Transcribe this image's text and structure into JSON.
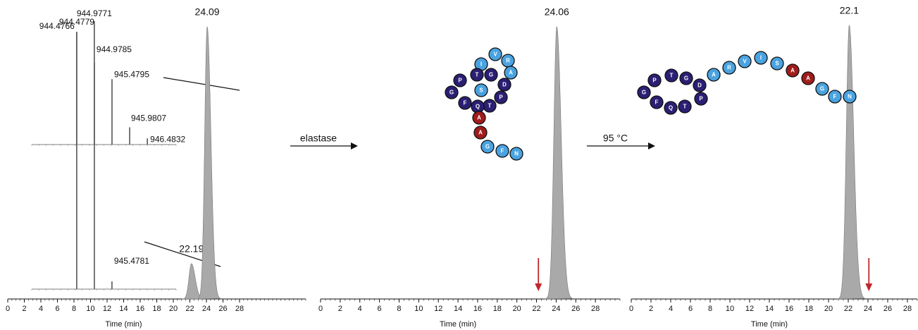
{
  "chart_data": [
    {
      "type": "chromatogram",
      "x": [
        22.19,
        24.09
      ],
      "values": [
        13,
        100
      ],
      "color": "#a9a9a9",
      "xlim": [
        0,
        36
      ],
      "xticks": [
        0,
        2,
        4,
        6,
        8,
        10,
        12,
        14,
        16,
        18,
        20,
        22,
        24,
        26,
        28
      ],
      "ylim": [
        0,
        100
      ],
      "xlabel": "Time (min)"
    },
    {
      "type": "chromatogram",
      "x": [
        24.06
      ],
      "values": [
        100
      ],
      "color": "#a9a9a9",
      "xlim": [
        0,
        30.5
      ],
      "xticks": [
        0,
        2,
        4,
        6,
        8,
        10,
        12,
        14,
        16,
        18,
        20,
        22,
        24,
        26,
        28
      ],
      "ylim": [
        0,
        100
      ],
      "xlabel": "Time (min)",
      "marker_x": 22.19,
      "marker_color": "#c0282d"
    },
    {
      "type": "chromatogram",
      "x": [
        22.1
      ],
      "values": [
        100
      ],
      "color": "#a9a9a9",
      "xlim": [
        0,
        29
      ],
      "xticks": [
        0,
        2,
        4,
        6,
        8,
        10,
        12,
        14,
        16,
        18,
        20,
        22,
        24,
        26,
        28
      ],
      "ylim": [
        0,
        100
      ],
      "xlabel": "Time (min)",
      "marker_x": 24.09,
      "marker_color": "#c0282d"
    },
    {
      "type": "spectrum",
      "x": [
        944.4766,
        944.9771,
        945.4795,
        945.9807,
        946.4832
      ],
      "values": [
        91,
        100,
        53,
        14,
        5
      ],
      "color": "#555555",
      "xlim": [
        943.2,
        947.3
      ],
      "ylim": [
        0,
        100
      ]
    },
    {
      "type": "spectrum",
      "x": [
        944.4779,
        944.9785,
        945.4781
      ],
      "values": [
        100,
        88,
        3
      ],
      "color": "#555555",
      "xlim": [
        943.2,
        947.3
      ],
      "ylim": [
        0,
        100
      ]
    }
  ],
  "arrows": [
    {
      "label": "elastase"
    },
    {
      "label": "95 °C"
    }
  ],
  "peptides": [
    {
      "residues": [
        {
          "letter": "I",
          "color": "#4aa3e0"
        },
        {
          "letter": "V",
          "color": "#4aa3e0"
        },
        {
          "letter": "R",
          "color": "#4aa3e0"
        },
        {
          "letter": "A",
          "color": "#4aa3e0"
        },
        {
          "letter": "D",
          "color": "#2a1f73"
        },
        {
          "letter": "P",
          "color": "#2a1f73"
        },
        {
          "letter": "T",
          "color": "#2a1f73"
        },
        {
          "letter": "Q",
          "color": "#2a1f73"
        },
        {
          "letter": "F",
          "color": "#2a1f73"
        },
        {
          "letter": "G",
          "color": "#2a1f73"
        },
        {
          "letter": "P",
          "color": "#2a1f73"
        },
        {
          "letter": "T",
          "color": "#2a1f73"
        },
        {
          "letter": "G",
          "color": "#2a1f73"
        },
        {
          "letter": "S",
          "color": "#4aa3e0"
        },
        {
          "letter": "A",
          "color": "#a01c1c"
        },
        {
          "letter": "A",
          "color": "#a01c1c"
        },
        {
          "letter": "G",
          "color": "#4aa3e0"
        },
        {
          "letter": "F",
          "color": "#4aa3e0"
        },
        {
          "letter": "N",
          "color": "#4aa3e0"
        }
      ]
    },
    {
      "residues": [
        {
          "letter": "G",
          "color": "#2a1f73"
        },
        {
          "letter": "P",
          "color": "#2a1f73"
        },
        {
          "letter": "T",
          "color": "#2a1f73"
        },
        {
          "letter": "G",
          "color": "#2a1f73"
        },
        {
          "letter": "D",
          "color": "#2a1f73"
        },
        {
          "letter": "P",
          "color": "#2a1f73"
        },
        {
          "letter": "T",
          "color": "#2a1f73"
        },
        {
          "letter": "Q",
          "color": "#2a1f73"
        },
        {
          "letter": "F",
          "color": "#2a1f73"
        },
        {
          "letter": "A",
          "color": "#4aa3e0"
        },
        {
          "letter": "R",
          "color": "#4aa3e0"
        },
        {
          "letter": "V",
          "color": "#4aa3e0"
        },
        {
          "letter": "I",
          "color": "#4aa3e0"
        },
        {
          "letter": "S",
          "color": "#4aa3e0"
        },
        {
          "letter": "A",
          "color": "#a01c1c"
        },
        {
          "letter": "A",
          "color": "#a01c1c"
        },
        {
          "letter": "G",
          "color": "#4aa3e0"
        },
        {
          "letter": "F",
          "color": "#4aa3e0"
        },
        {
          "letter": "N",
          "color": "#4aa3e0"
        }
      ]
    }
  ]
}
